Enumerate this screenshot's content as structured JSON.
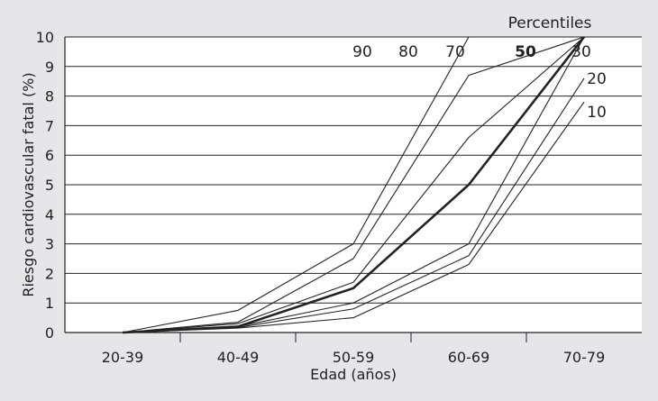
{
  "chart_data": {
    "type": "line",
    "title": "",
    "xlabel": "Edad (años)",
    "ylabel": "Riesgo cardiovascular fatal (%)",
    "categories": [
      "20-39",
      "40-49",
      "50-59",
      "60-69",
      "70-79"
    ],
    "ylim": [
      0,
      10
    ],
    "yticks": [
      "0",
      "1",
      "2",
      "3",
      "4",
      "5",
      "6",
      "7",
      "8",
      "9",
      "10"
    ],
    "grid": true,
    "legend_title": "Percentiles",
    "series": [
      {
        "name": "10",
        "bold": false,
        "values": [
          0,
          0.15,
          0.5,
          2.3,
          7.8
        ]
      },
      {
        "name": "20",
        "bold": false,
        "values": [
          0,
          0.17,
          0.8,
          2.6,
          8.6
        ]
      },
      {
        "name": "30",
        "bold": false,
        "values": [
          0,
          0.2,
          1.0,
          3.0,
          10.0
        ]
      },
      {
        "name": "50",
        "bold": true,
        "values": [
          0,
          0.2,
          1.5,
          5.0,
          10.0
        ]
      },
      {
        "name": "70",
        "bold": false,
        "values": [
          0,
          0.3,
          1.7,
          6.6,
          10.0
        ]
      },
      {
        "name": "80",
        "bold": false,
        "values": [
          0,
          0.35,
          2.5,
          8.7,
          10.0
        ]
      },
      {
        "name": "90",
        "bold": false,
        "values": [
          0,
          0.75,
          3.0,
          10.0,
          10.0
        ]
      }
    ]
  }
}
